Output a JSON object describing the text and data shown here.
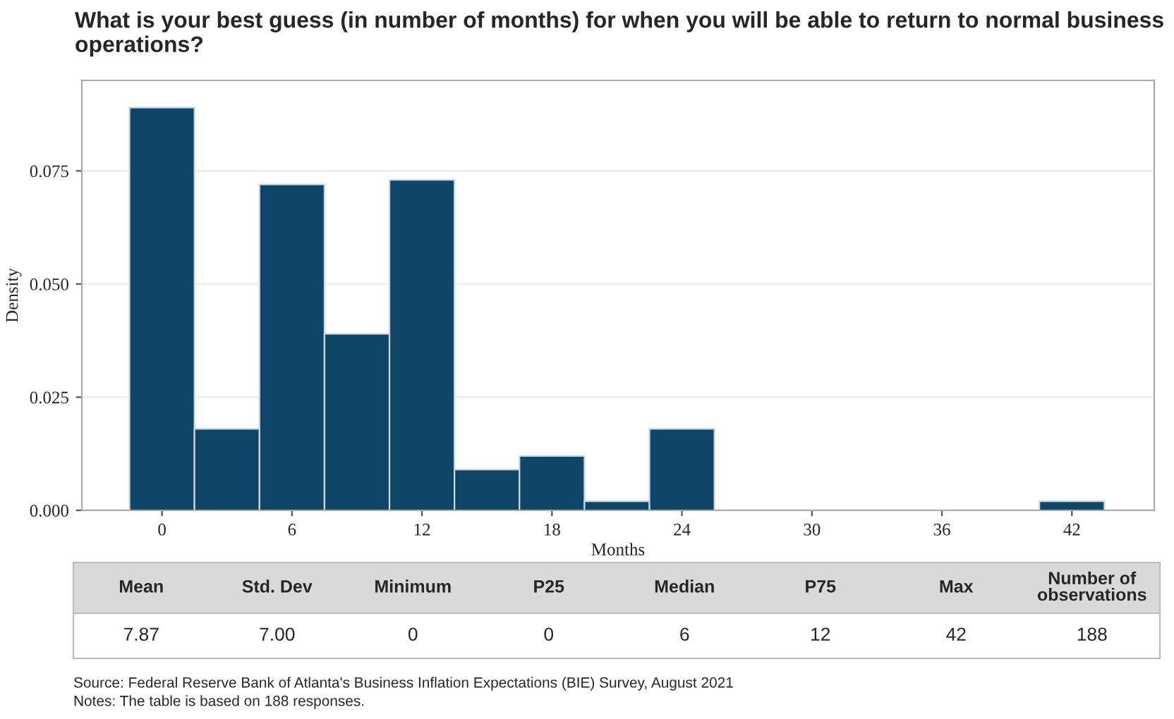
{
  "chart_data": {
    "type": "histogram",
    "title": "What is your best guess (in number of months) for when you will be able to return to normal business operations?",
    "xlabel": "Months",
    "ylabel": "Density",
    "bins": [
      -1.5,
      1.5,
      4.5,
      7.5,
      10.5,
      13.5,
      16.5,
      19.5,
      22.5,
      25.5,
      28.5,
      31.5,
      34.5,
      37.5,
      40.5,
      43.5
    ],
    "values": [
      0.089,
      0.018,
      0.072,
      0.039,
      0.073,
      0.009,
      0.012,
      0.002,
      0.018,
      0,
      0,
      0,
      0,
      0,
      0.002
    ],
    "color": "#0f4667",
    "xlim": [
      -3.7,
      45.8
    ],
    "xticks": [
      0,
      6,
      12,
      18,
      24,
      30,
      36,
      42
    ],
    "ylim": [
      0,
      0.095
    ],
    "yticks": [
      {
        "value": 0,
        "label": "0.000"
      },
      0.025,
      {
        "value": 0.05,
        "label": "0.050"
      },
      0.075
    ],
    "grid": "y",
    "legend": false,
    "annotations": [
      "Mean",
      "Std. Dev",
      "Minimum",
      "P25",
      "Median",
      "P75",
      "Max",
      "Number of\nobservations",
      "7.87",
      "7.00",
      "0",
      "0",
      "6",
      "12",
      "42",
      "188",
      "Source: Federal Reserve Bank of Atlanta's Business Inflation Expectations (BIE) Survey, August 2021",
      "Notes: The table is based on 188 responses."
    ]
  }
}
